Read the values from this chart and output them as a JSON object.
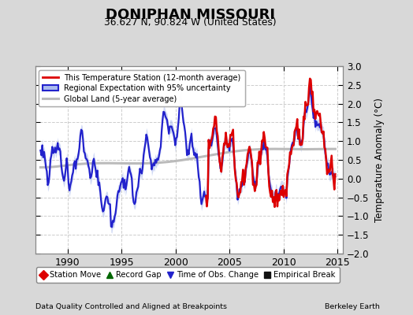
{
  "title": "DONIPHAN MISSOURI",
  "subtitle": "36.627 N, 90.824 W (United States)",
  "ylabel": "Temperature Anomaly (°C)",
  "footer_left": "Data Quality Controlled and Aligned at Breakpoints",
  "footer_right": "Berkeley Earth",
  "xlim": [
    1987.0,
    2015.5
  ],
  "ylim": [
    -2.0,
    3.0
  ],
  "xticks": [
    1990,
    1995,
    2000,
    2005,
    2010,
    2015
  ],
  "yticks": [
    -2.0,
    -1.5,
    -1.0,
    -0.5,
    0.0,
    0.5,
    1.0,
    1.5,
    2.0,
    2.5,
    3.0
  ],
  "fig_bg_color": "#d8d8d8",
  "plot_bg_color": "#ffffff",
  "grid_color": "#cccccc",
  "red_color": "#dd0000",
  "blue_color": "#2222cc",
  "blue_fill_color": "#aabbee",
  "gray_color": "#bbbbbb",
  "legend1_entries": [
    {
      "label": "This Temperature Station (12-month average)",
      "color": "#dd0000",
      "lw": 2.0
    },
    {
      "label": "Regional Expectation with 95% uncertainty",
      "color": "#2222cc",
      "lw": 2.0,
      "fill": "#aabbee"
    },
    {
      "label": "Global Land (5-year average)",
      "color": "#bbbbbb",
      "lw": 2.5
    }
  ],
  "legend2_entries": [
    {
      "label": "Station Move",
      "marker": "D",
      "color": "#dd0000"
    },
    {
      "label": "Record Gap",
      "marker": "^",
      "color": "#006600"
    },
    {
      "label": "Time of Obs. Change",
      "marker": "v",
      "color": "#2222cc"
    },
    {
      "label": "Empirical Break",
      "marker": "s",
      "color": "#111111"
    }
  ]
}
